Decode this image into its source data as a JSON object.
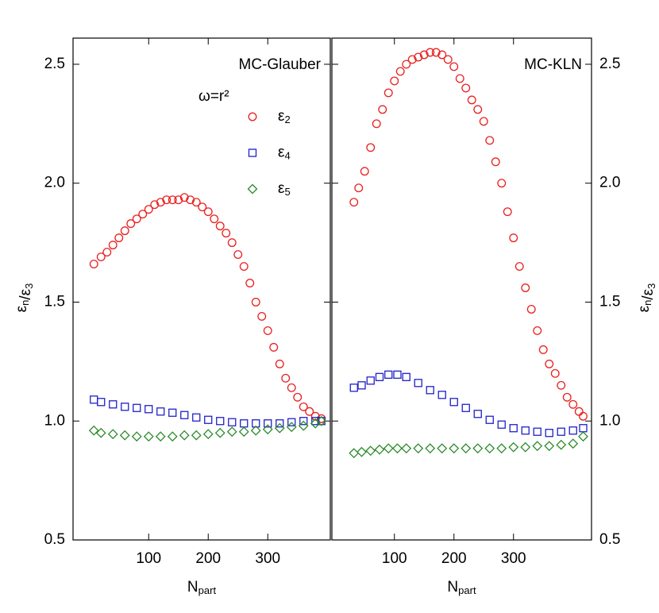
{
  "chart_data": [
    {
      "type": "scatter",
      "title": "MC-Glauber",
      "annotation": "ω=r²",
      "xlabel": {
        "text": "N",
        "sub": "part"
      },
      "ylabel": [
        {
          "text": "ε",
          "sub": "n"
        },
        {
          "text": "/ε",
          "sub": "3"
        }
      ],
      "xlim": [
        -27,
        405
      ],
      "xticks": [
        100,
        200,
        300
      ],
      "ylim": [
        0.5,
        2.61
      ],
      "yticks": [
        {
          "value": 0.5,
          "label": "0.5"
        },
        {
          "value": 1,
          "label": "1.0"
        },
        1.5,
        {
          "value": 2,
          "label": "2.0"
        },
        2.5
      ],
      "series": [
        {
          "name": {
            "text": "ε",
            "sub": "2"
          },
          "color": "#e8201e",
          "marker": "circle",
          "x": [
            8,
            20,
            30,
            40,
            50,
            60,
            70,
            80,
            90,
            100,
            110,
            120,
            130,
            140,
            150,
            160,
            170,
            180,
            190,
            200,
            210,
            220,
            230,
            240,
            250,
            260,
            270,
            280,
            290,
            300,
            310,
            320,
            330,
            340,
            350,
            360,
            370,
            380,
            390
          ],
          "values": [
            1.66,
            1.69,
            1.71,
            1.74,
            1.77,
            1.8,
            1.83,
            1.85,
            1.87,
            1.89,
            1.91,
            1.92,
            1.93,
            1.93,
            1.93,
            1.94,
            1.93,
            1.92,
            1.9,
            1.88,
            1.85,
            1.82,
            1.79,
            1.75,
            1.7,
            1.65,
            1.58,
            1.5,
            1.44,
            1.38,
            1.31,
            1.24,
            1.18,
            1.14,
            1.1,
            1.06,
            1.04,
            1.02,
            1.01
          ]
        },
        {
          "name": {
            "text": "ε",
            "sub": "4"
          },
          "color": "#2020c8",
          "marker": "square",
          "x": [
            8,
            20,
            40,
            60,
            80,
            100,
            120,
            140,
            160,
            180,
            200,
            220,
            240,
            260,
            280,
            300,
            320,
            340,
            360,
            380,
            390
          ],
          "values": [
            1.09,
            1.08,
            1.07,
            1.06,
            1.055,
            1.05,
            1.04,
            1.035,
            1.025,
            1.015,
            1.005,
            1.0,
            0.995,
            0.99,
            0.99,
            0.99,
            0.99,
            0.995,
            1.0,
            1.0,
            1.0
          ]
        },
        {
          "name": {
            "text": "ε",
            "sub": "5"
          },
          "color": "#2a8a2a",
          "marker": "diamond",
          "x": [
            8,
            20,
            40,
            60,
            80,
            100,
            120,
            140,
            160,
            180,
            200,
            220,
            240,
            260,
            280,
            300,
            320,
            340,
            360,
            380,
            390
          ],
          "values": [
            0.96,
            0.95,
            0.945,
            0.94,
            0.935,
            0.935,
            0.935,
            0.935,
            0.94,
            0.94,
            0.945,
            0.95,
            0.955,
            0.955,
            0.96,
            0.965,
            0.97,
            0.975,
            0.98,
            0.99,
            1.0
          ]
        }
      ]
    },
    {
      "type": "scatter",
      "title": "MC-KLN",
      "xlabel": {
        "text": "N",
        "sub": "part"
      },
      "ylabel": [
        {
          "text": "ε",
          "sub": "n"
        },
        {
          "text": "/ε",
          "sub": "3"
        }
      ],
      "xlim": [
        -5,
        431
      ],
      "xticks": [
        100,
        200,
        300
      ],
      "ylim": [
        0.5,
        2.61
      ],
      "yticks": [
        {
          "value": 0.5,
          "label": "0.5"
        },
        {
          "value": 1,
          "label": "1.0"
        },
        1.5,
        {
          "value": 2,
          "label": "2.0"
        },
        2.5
      ],
      "series": [
        {
          "color": "#e8201e",
          "marker": "circle",
          "x": [
            32,
            40,
            50,
            60,
            70,
            80,
            90,
            100,
            110,
            120,
            130,
            140,
            150,
            160,
            170,
            180,
            190,
            200,
            210,
            220,
            230,
            240,
            250,
            260,
            270,
            280,
            290,
            300,
            310,
            320,
            330,
            340,
            350,
            360,
            370,
            380,
            390,
            400,
            410,
            417
          ],
          "values": [
            1.92,
            1.98,
            2.05,
            2.15,
            2.25,
            2.31,
            2.38,
            2.43,
            2.47,
            2.5,
            2.52,
            2.53,
            2.54,
            2.55,
            2.55,
            2.54,
            2.52,
            2.49,
            2.44,
            2.4,
            2.35,
            2.31,
            2.26,
            2.18,
            2.09,
            2.0,
            1.88,
            1.77,
            1.65,
            1.56,
            1.47,
            1.38,
            1.3,
            1.24,
            1.2,
            1.15,
            1.1,
            1.07,
            1.04,
            1.02
          ]
        },
        {
          "color": "#2020c8",
          "marker": "square",
          "x": [
            32,
            45,
            60,
            75,
            90,
            105,
            120,
            140,
            160,
            180,
            200,
            220,
            240,
            260,
            280,
            300,
            320,
            340,
            360,
            380,
            400,
            417
          ],
          "values": [
            1.14,
            1.15,
            1.17,
            1.185,
            1.195,
            1.195,
            1.185,
            1.16,
            1.13,
            1.11,
            1.08,
            1.055,
            1.03,
            1.005,
            0.985,
            0.97,
            0.96,
            0.955,
            0.95,
            0.955,
            0.96,
            0.97
          ]
        },
        {
          "color": "#2a8a2a",
          "marker": "diamond",
          "x": [
            32,
            45,
            60,
            75,
            90,
            105,
            120,
            140,
            160,
            180,
            200,
            220,
            240,
            260,
            280,
            300,
            320,
            340,
            360,
            380,
            400,
            417
          ],
          "values": [
            0.865,
            0.87,
            0.875,
            0.88,
            0.885,
            0.885,
            0.885,
            0.885,
            0.885,
            0.885,
            0.885,
            0.885,
            0.885,
            0.885,
            0.885,
            0.89,
            0.89,
            0.895,
            0.895,
            0.9,
            0.905,
            0.935
          ]
        }
      ]
    }
  ]
}
